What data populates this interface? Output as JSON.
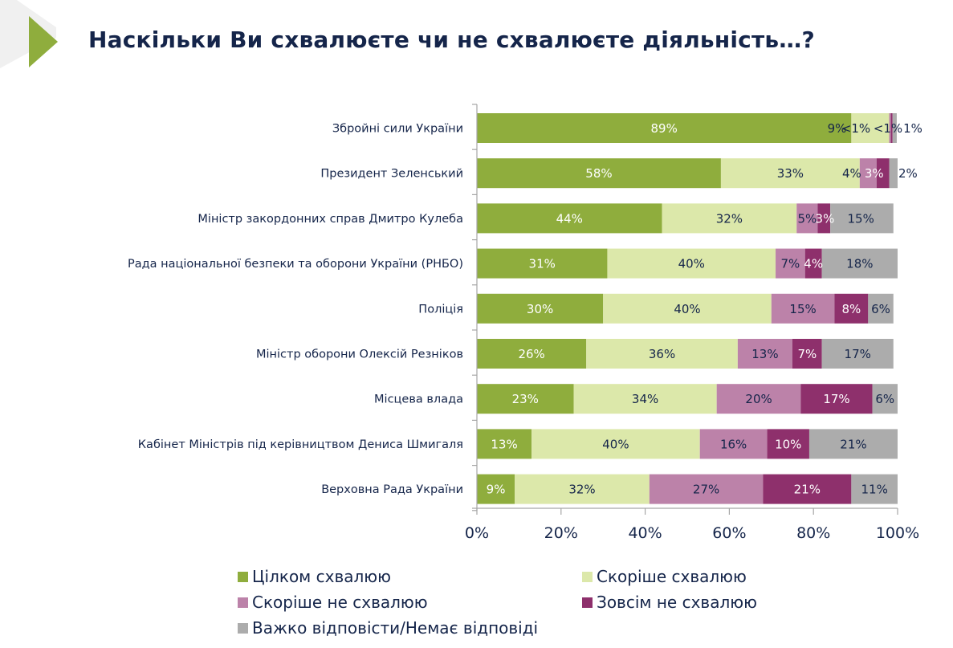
{
  "title": "Наскільки Ви схвалюєте чи не схвалюєте діяльність…?",
  "chart_data": {
    "type": "bar",
    "orientation": "horizontal",
    "stacked": true,
    "title": "Наскільки Ви схвалюєте чи не схвалюєте діяльність…?",
    "xlabel": "",
    "ylabel": "",
    "xlim": [
      0,
      100
    ],
    "xticks": [
      "0%",
      "20%",
      "40%",
      "60%",
      "80%",
      "100%"
    ],
    "grid": false,
    "legend_position": "bottom",
    "categories": [
      "Збройні сили України",
      "Президент Зеленський",
      "Міністр закордонних справ Дмитро Кулеба",
      "Рада національної безпеки та оборони України (РНБО)",
      "Поліція",
      "Міністр оборони Олексій Резніков",
      "Місцева влада",
      "Кабінет Міністрів під керівництвом Дениса Шмигаля",
      "Верховна Рада України"
    ],
    "series": [
      {
        "name": "Цілком схвалюю",
        "color": "#8fad3d",
        "label_color": "#ffffff",
        "values": [
          89,
          58,
          44,
          31,
          30,
          26,
          23,
          13,
          9
        ],
        "labels": [
          "89%",
          "58%",
          "44%",
          "31%",
          "30%",
          "26%",
          "23%",
          "13%",
          "9%"
        ]
      },
      {
        "name": "Скоріше схвалюю",
        "color": "#dce8aa",
        "label_color": "#15254a",
        "values": [
          9,
          33,
          32,
          40,
          40,
          36,
          34,
          40,
          32
        ],
        "labels": [
          "9%",
          "33%",
          "32%",
          "40%",
          "40%",
          "36%",
          "34%",
          "40%",
          "32%"
        ]
      },
      {
        "name": "Скоріше не схвалюю",
        "color": "#bc82a9",
        "label_color": "#15254a",
        "values": [
          0.4,
          4,
          5,
          7,
          15,
          13,
          20,
          16,
          27
        ],
        "labels": [
          "<1%",
          "4%",
          "5%",
          "7%",
          "15%",
          "13%",
          "20%",
          "16%",
          "27%"
        ]
      },
      {
        "name": "Зовсім не схвалюю",
        "color": "#8e306c",
        "label_color": "#ffffff",
        "values": [
          0.4,
          3,
          3,
          4,
          8,
          7,
          17,
          10,
          21
        ],
        "labels": [
          "<1%",
          "3%",
          "3%",
          "4%",
          "8%",
          "7%",
          "17%",
          "10%",
          "21%"
        ]
      },
      {
        "name": "Важко відповісти/Немає відповіді",
        "color": "#acacac",
        "label_color": "#15254a",
        "values": [
          1,
          2,
          15,
          18,
          6,
          17,
          6,
          21,
          11
        ],
        "labels": [
          "1%",
          "2%",
          "15%",
          "18%",
          "6%",
          "17%",
          "6%",
          "21%",
          "11%"
        ]
      }
    ]
  },
  "legend": [
    {
      "label": "Цілком схвалюю",
      "color": "#8fad3d"
    },
    {
      "label": "Скоріше схвалюю",
      "color": "#dce8aa"
    },
    {
      "label": "Скоріше не схвалюю",
      "color": "#bc82a9"
    },
    {
      "label": "Зовсім не схвалюю",
      "color": "#8e306c"
    },
    {
      "label": "Важко відповісти/Немає відповіді",
      "color": "#acacac"
    }
  ],
  "colors": {
    "title": "#15254a",
    "accent": "#8fad3d",
    "axis": "#a6a6a6"
  }
}
